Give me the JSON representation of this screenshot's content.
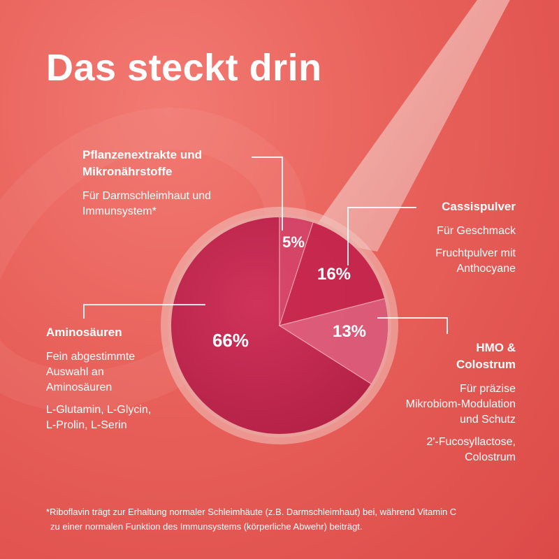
{
  "title": "Das steckt drin",
  "colors": {
    "background": "#e8605a",
    "powder_main": "#c8284e",
    "powder_highlight": "#d84a6c",
    "powder_light": "#e06480",
    "text": "#ffffff"
  },
  "chart_data": {
    "type": "pie",
    "title": "Das steckt drin",
    "slices": [
      {
        "label": "Aminosäuren",
        "value": 66,
        "display": "66%"
      },
      {
        "label": "Pflanzenextrakte und Mikronährstoffe",
        "value": 5,
        "display": "5%"
      },
      {
        "label": "Cassispulver",
        "value": 16,
        "display": "16%"
      },
      {
        "label": "HMO & Colostrum",
        "value": 13,
        "display": "13%"
      }
    ],
    "legend": "callouts"
  },
  "labels": {
    "plants": {
      "head1": "Pflanzenextrakte und",
      "head2": "Mikronährstoffe",
      "desc1": "Für Darmschleimhaut und",
      "desc2": "Immunsystem*"
    },
    "cassis": {
      "head": "Cassispulver",
      "desc": "Für Geschmack",
      "extra1": "Fruchtpulver mit",
      "extra2": "Anthocyane"
    },
    "hmo": {
      "head1": "HMO &",
      "head2": "Colostrum",
      "desc1": "Für präzise",
      "desc2": "Mikrobiom-Modulation",
      "desc3": "und Schutz",
      "extra1": "2'-Fucosyllactose,",
      "extra2": "Colostrum"
    },
    "amino": {
      "head": "Aminosäuren",
      "desc1": "Fein abgestimmte",
      "desc2": "Auswahl an",
      "desc3": "Aminosäuren",
      "extra1": "L-Glutamin, L-Glycin,",
      "extra2": "L-Prolin, L-Serin"
    }
  },
  "footnote": {
    "line1": "*Riboflavin trägt zur Erhaltung normaler Schleimhäute (z.B. Darmschleimhaut) bei, während Vitamin C",
    "line2": "zu einer normalen Funktion des Immunsystems (körperliche Abwehr) beiträgt."
  }
}
